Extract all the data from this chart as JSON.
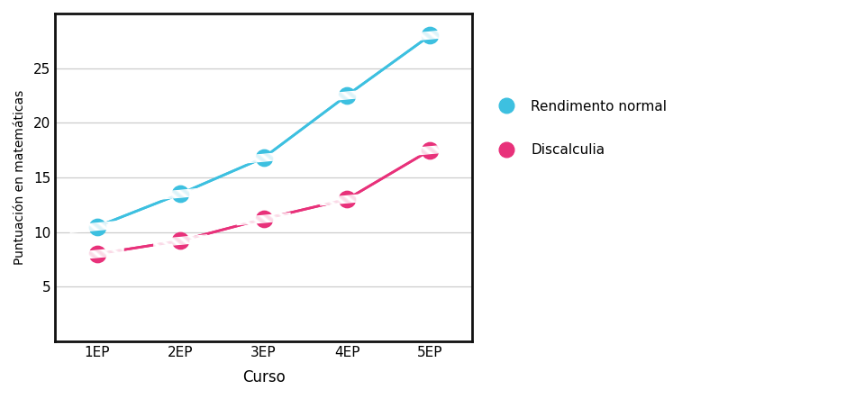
{
  "x_labels": [
    "1EP",
    "2EP",
    "3EP",
    "4EP",
    "5EP"
  ],
  "x_values": [
    1,
    2,
    3,
    4,
    5
  ],
  "normal_y": [
    10.5,
    13.5,
    16.8,
    22.5,
    28.0
  ],
  "discalculia_y": [
    8.0,
    9.2,
    11.2,
    13.0,
    17.5
  ],
  "color_normal": "#3DC0E0",
  "color_discalculia": "#E8317A",
  "ylabel": "Puntuación en matemáticas",
  "xlabel": "Curso",
  "ylim": [
    0,
    30
  ],
  "yticks": [
    0,
    5,
    10,
    15,
    20,
    25
  ],
  "legend_normal": "Rendimento normal",
  "legend_discalculia": "Discalculia",
  "bg_color": "#FFFFFF",
  "plot_bg_color": "#FFFFFF",
  "grid_color": "#CCCCCC",
  "border_color": "#111111",
  "marker_size": 13,
  "line_width": 2.0
}
